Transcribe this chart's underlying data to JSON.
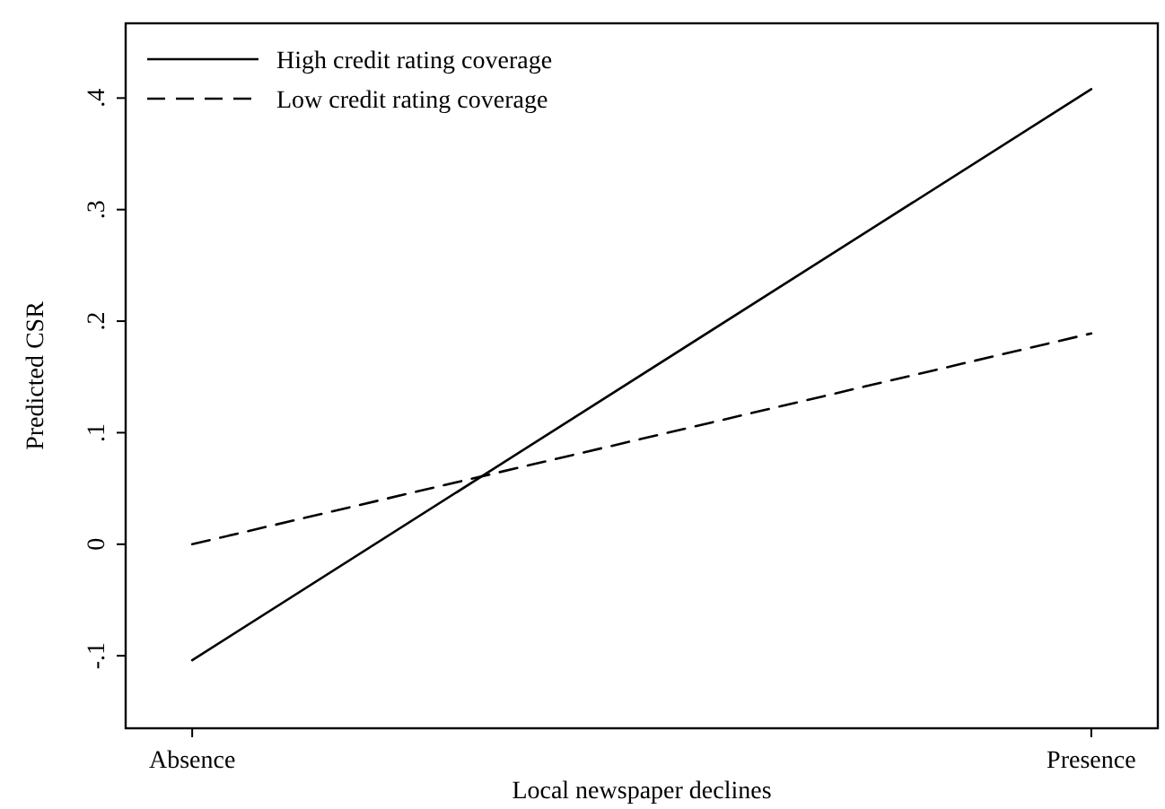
{
  "chart_data": {
    "type": "line",
    "xlabel": "Local newspaper declines",
    "ylabel": "Predicted CSR",
    "categories": [
      "Absence",
      "Presence"
    ],
    "series": [
      {
        "name": "High credit rating coverage",
        "color": "#000000",
        "values": [
          -0.104,
          0.408
        ],
        "line_style": "solid"
      },
      {
        "name": "Low credit rating coverage",
        "color": "#000000",
        "values": [
          0.0,
          0.189
        ],
        "line_style": "dashed"
      }
    ],
    "ylim": [
      -0.165,
      0.467
    ],
    "yticks": [
      {
        "value": -0.1,
        "label": "-.1"
      },
      {
        "value": 0,
        "label": "0"
      },
      {
        "value": 0.1,
        "label": ".1"
      },
      {
        "value": 0.2,
        "label": ".2"
      },
      {
        "value": 0.3,
        "label": ".3"
      },
      {
        "value": 0.4,
        "label": ".4"
      }
    ],
    "grid": false,
    "legend": "top left",
    "marker": "none"
  }
}
